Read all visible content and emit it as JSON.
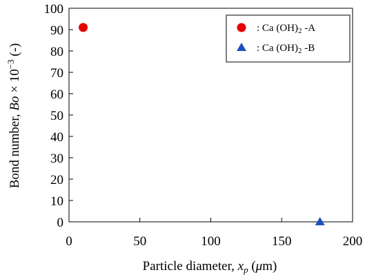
{
  "chart_data": {
    "type": "scatter",
    "xlabel_parts": [
      "Particle diameter, ",
      "x",
      "p",
      " (",
      "μ",
      "m)"
    ],
    "ylabel_parts": [
      "Bond number, ",
      "Bo",
      " × 10",
      "−3",
      " (-)"
    ],
    "xlim": [
      0,
      200
    ],
    "ylim": [
      0,
      100
    ],
    "x_ticks": [
      0,
      50,
      100,
      150,
      200
    ],
    "y_ticks": [
      0,
      10,
      20,
      30,
      40,
      50,
      60,
      70,
      80,
      90,
      100
    ],
    "grid": false,
    "legend_position": "top-right",
    "series": [
      {
        "name_parts": [
          ": Ca (OH)",
          "2",
          " -A"
        ],
        "marker": "circle",
        "color": "#e60000",
        "points": [
          {
            "x": 10,
            "y": 91
          }
        ]
      },
      {
        "name_parts": [
          ": Ca (OH)",
          "2",
          " -B"
        ],
        "marker": "triangle",
        "color": "#1f4fbf",
        "points": [
          {
            "x": 177,
            "y": 0
          }
        ]
      }
    ]
  }
}
